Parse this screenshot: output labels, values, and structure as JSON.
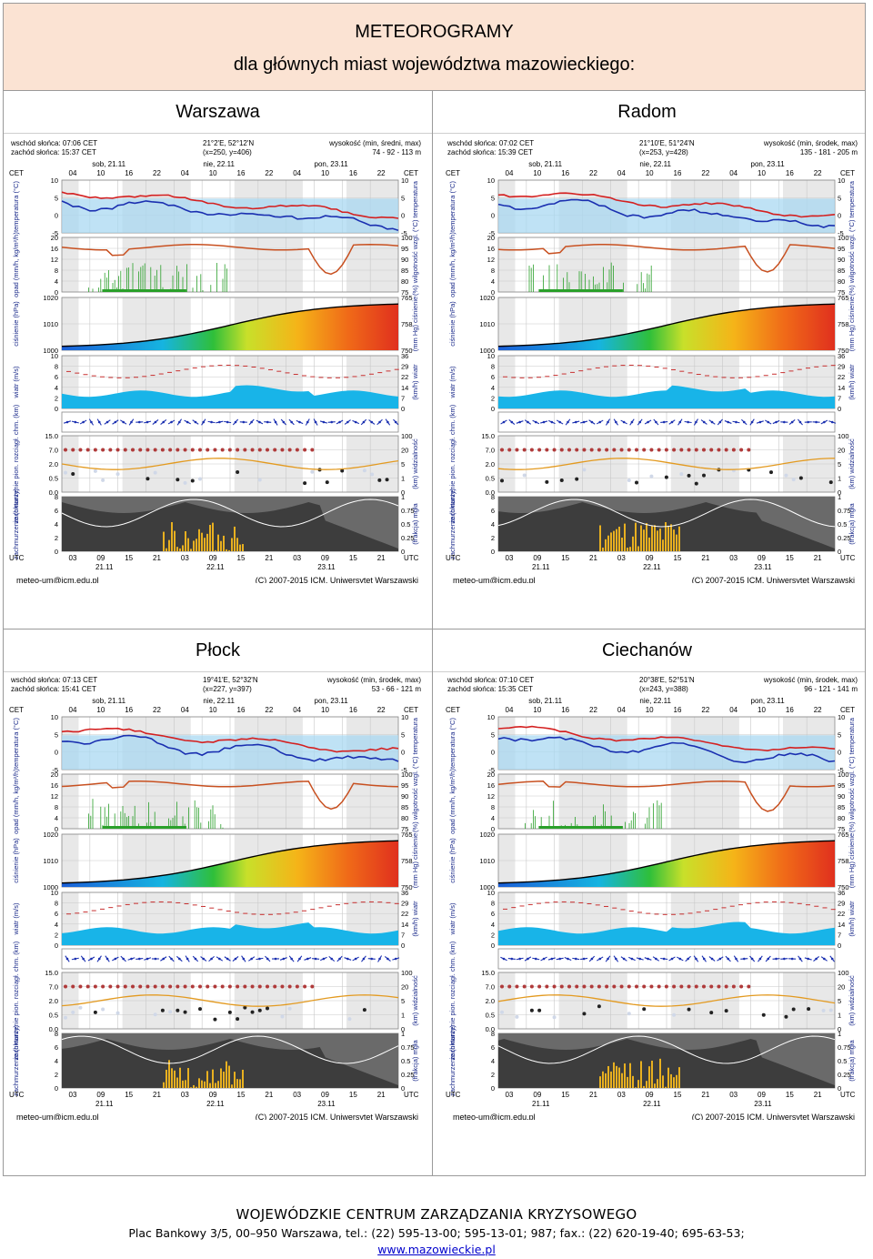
{
  "header": {
    "title": "METEOROGRAMY",
    "subtitle": "dla głównych miast województwa mazowieckiego:"
  },
  "meteograms": [
    {
      "city": "Warszawa",
      "sunrise": "wschód słońca: 07:06 CET",
      "sunset": "zachód słońca: 15:37 CET",
      "coords": "21°2'E, 52°12'N",
      "grid": "(x=250, y=406)",
      "height_label": "wysokość (min, średni, max)",
      "height_values": "74 - 92 - 113 m",
      "footer_left": "meteo-um@icm.edu.pl",
      "footer_right": "(C) 2007-2015 ICM, Uniwersytet Warszawski"
    },
    {
      "city": "Radom",
      "sunrise": "wschód słońca: 07:02 CET",
      "sunset": "zachód słońca: 15:39 CET",
      "coords": "21°10'E, 51°24'N",
      "grid": "(x=253, y=428)",
      "height_label": "wysokość (min, środek, max)",
      "height_values": "135 - 181 - 205 m",
      "footer_left": "meteo-um@icm.edu.pl",
      "footer_right": "(C) 2007-2015 ICM, Uniwersytet Warszawski"
    },
    {
      "city": "Płock",
      "sunrise": "wschód słońca: 07:13 CET",
      "sunset": "zachód słońca: 15:41 CET",
      "coords": "19°41'E, 52°32'N",
      "grid": "(x=227, y=397)",
      "height_label": "wysokość (min, środek, max)",
      "height_values": "53 - 66 - 121 m",
      "footer_left": "meteo-um@icm.edu.pl",
      "footer_right": "(C) 2007-2015 ICM, Uniwersytet Warszawski"
    },
    {
      "city": "Ciechanów",
      "sunrise": "wschód słońca: 07:10 CET",
      "sunset": "zachód słońca: 15:35 CET",
      "coords": "20°38'E, 52°51'N",
      "grid": "(x=243, y=388)",
      "height_label": "wysokość (min, środek, max)",
      "height_values": "96 - 121 - 141 m",
      "footer_left": "meteo-um@icm.edu.pl",
      "footer_right": "(C) 2007-2015 ICM, Uniwersytet Warszawski"
    }
  ],
  "meteogram_common": {
    "days_top": [
      "sob, 21.11",
      "nie, 22.11",
      "pon, 23.11"
    ],
    "hours_cet": [
      "04",
      "10",
      "16",
      "22",
      "04",
      "10",
      "16",
      "22",
      "04",
      "10",
      "16",
      "22"
    ],
    "hours_utc": [
      "03",
      "09",
      "15",
      "21",
      "03",
      "09",
      "15",
      "21",
      "03",
      "09",
      "15",
      "21"
    ],
    "days_bottom": [
      "21.11",
      "22.11",
      "23.11"
    ],
    "cet_label": "CET",
    "utc_label": "UTC",
    "panels": [
      {
        "left": "temperatura (°C)",
        "right": "(°C) temperatura",
        "ticks_left": [
          "10",
          "5",
          "0",
          "-5"
        ],
        "ticks_right": [
          "10",
          "5",
          "0",
          "-5"
        ]
      },
      {
        "left": "opad (mm/h, kg/m²/h)",
        "right": "(%) wilgotność wzgl.",
        "ticks_left": [
          "20",
          "16",
          "12",
          "8",
          "4",
          "0"
        ],
        "ticks_right": [
          "100",
          "95",
          "90",
          "85",
          "80",
          "75"
        ]
      },
      {
        "left": "ciśnienie (hPa)",
        "right": "(mm Hg) ciśnienie",
        "ticks_left": [
          "1020",
          "1010",
          "1000"
        ],
        "ticks_right": [
          "765",
          "758",
          "750"
        ]
      },
      {
        "left": "wiatr (m/s)",
        "right": "(km/h) wiatr",
        "ticks_left": [
          "10",
          "8",
          "6",
          "4",
          "2",
          "0"
        ],
        "ticks_right": [
          "36",
          "29",
          "22",
          "14",
          "7",
          "0"
        ]
      },
      {
        "left": "",
        "right": "",
        "ticks_left": [],
        "ticks_right": []
      },
      {
        "left": "zachmurzenie pion. rozciągł. chm. (km)",
        "right": "(km) widzialność",
        "ticks_left": [
          "15.0",
          "7.0",
          "2.0",
          "0.5",
          "0.0"
        ],
        "ticks_right": [
          "100",
          "20",
          "5",
          "1",
          "0"
        ]
      },
      {
        "left": "zachmurzenie (oktanty)",
        "right": "(frakcja) mgła",
        "ticks_left": [
          "8",
          "6",
          "4",
          "2",
          "0"
        ],
        "ticks_right": [
          "1",
          "0.75",
          "0.5",
          "0.25",
          "0"
        ]
      }
    ],
    "colors": {
      "temp_red": "#d42020",
      "temp_blue": "#1a2fb0",
      "humidity": "#c85020",
      "precip": "#2aa02a",
      "pressure_line": "#000000",
      "wind_fill": "#18b4e8",
      "panel_bg": "#a9d8f2"
    }
  },
  "footer": {
    "org": "WOJEWÓDZKIE CENTRUM ZARZĄDZANIA KRYZYSOWEGO",
    "address": "Plac Bankowy 3/5, 00–950 Warszawa, tel.: (22) 595-13-00; 595-13-01; 987; fax.: (22) 620-19-40; 695-63-53;",
    "website": "www.mazowieckie.pl"
  }
}
